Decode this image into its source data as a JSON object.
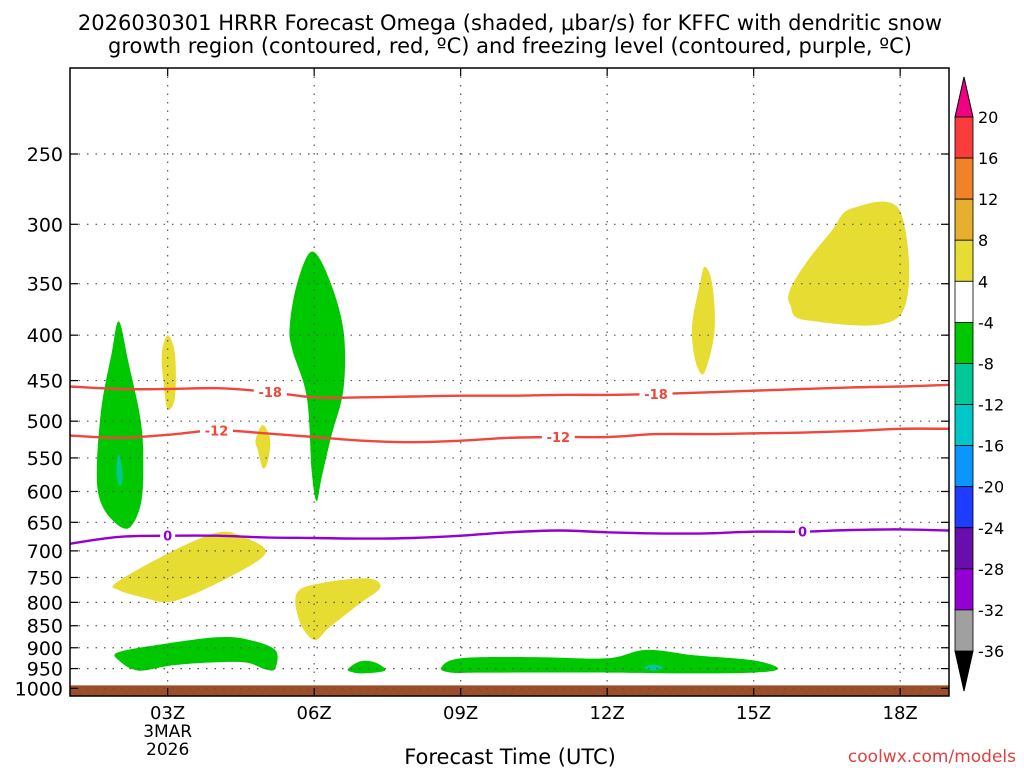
{
  "chart_data": {
    "type": "heatmap",
    "title_line1": "2026030301 HRRR Forecast Omega (shaded, μbar/s) for KFFC with dendritic snow",
    "title_line2": "growth region (contoured, red, ºC) and freezing level (contoured, purple, ºC)",
    "xlabel": "Forecast Time (UTC)",
    "watermark": "coolwx.com/models",
    "x_axis": {
      "min_hour": 1,
      "max_hour": 19,
      "ticks": [
        {
          "hour": 3,
          "label": "03Z",
          "sub1": "3MAR",
          "sub2": "2026"
        },
        {
          "hour": 6,
          "label": "06Z",
          "sub1": "",
          "sub2": ""
        },
        {
          "hour": 9,
          "label": "09Z",
          "sub1": "",
          "sub2": ""
        },
        {
          "hour": 12,
          "label": "12Z",
          "sub1": "",
          "sub2": ""
        },
        {
          "hour": 15,
          "label": "15Z",
          "sub1": "",
          "sub2": ""
        },
        {
          "hour": 18,
          "label": "18Z",
          "sub1": "",
          "sub2": ""
        }
      ]
    },
    "y_axis": {
      "scale": "log-pressure",
      "top_hpa": 200,
      "bottom_hpa": 1020,
      "ticks": [
        250,
        300,
        350,
        400,
        450,
        500,
        550,
        600,
        650,
        700,
        750,
        800,
        850,
        900,
        950,
        1000
      ]
    },
    "ground_color": "#9c4e2a",
    "colorbar": {
      "colors": [
        "#000000",
        "#a0a0a0",
        "#9400d3",
        "#6a0dad",
        "#1e3cff",
        "#0a96ff",
        "#00c8c8",
        "#00c896",
        "#00c800",
        "#ffffff",
        "#e6dc32",
        "#e6af2d",
        "#f08228",
        "#fa3c3c",
        "#f00082"
      ],
      "labels": [
        "-36",
        "-32",
        "-28",
        "-24",
        "-20",
        "-16",
        "-12",
        "-8",
        "-4",
        "4",
        "8",
        "12",
        "16",
        "20"
      ]
    },
    "contours": [
      {
        "name": "-18",
        "color": "#f0463c",
        "label_hours": [
          5.1,
          13.0
        ],
        "points": [
          [
            1,
            457
          ],
          [
            2,
            460
          ],
          [
            3,
            460
          ],
          [
            4,
            459
          ],
          [
            5,
            463
          ],
          [
            6,
            470
          ],
          [
            7,
            470
          ],
          [
            8,
            469
          ],
          [
            9,
            468
          ],
          [
            10,
            468
          ],
          [
            11,
            467
          ],
          [
            12,
            467
          ],
          [
            13,
            466
          ],
          [
            14,
            464
          ],
          [
            15,
            462
          ],
          [
            16,
            460
          ],
          [
            17,
            458
          ],
          [
            18,
            457
          ],
          [
            19,
            455
          ]
        ]
      },
      {
        "name": "-12",
        "color": "#f0463c",
        "label_hours": [
          4.0,
          11.0
        ],
        "points": [
          [
            1,
            519
          ],
          [
            2,
            522
          ],
          [
            3,
            518
          ],
          [
            4,
            512
          ],
          [
            5,
            516
          ],
          [
            6,
            521
          ],
          [
            7,
            526
          ],
          [
            8,
            528
          ],
          [
            9,
            526
          ],
          [
            10,
            522
          ],
          [
            11,
            521
          ],
          [
            12,
            521
          ],
          [
            13,
            517
          ],
          [
            14,
            517
          ],
          [
            15,
            516
          ],
          [
            16,
            515
          ],
          [
            17,
            513
          ],
          [
            18,
            510
          ],
          [
            19,
            510
          ]
        ]
      },
      {
        "name": "0",
        "color": "#9400d3",
        "label_hours": [
          3.0,
          16.0
        ],
        "points": [
          [
            1,
            687
          ],
          [
            2,
            675
          ],
          [
            3,
            673
          ],
          [
            4,
            673
          ],
          [
            5,
            676
          ],
          [
            6,
            677
          ],
          [
            7,
            678
          ],
          [
            8,
            677
          ],
          [
            9,
            673
          ],
          [
            10,
            667
          ],
          [
            11,
            664
          ],
          [
            12,
            667
          ],
          [
            13,
            669
          ],
          [
            14,
            669
          ],
          [
            15,
            666
          ],
          [
            16,
            666
          ],
          [
            17,
            663
          ],
          [
            18,
            662
          ],
          [
            19,
            664
          ]
        ]
      }
    ],
    "shading": [
      {
        "category": "-8 to -4",
        "color": "#00c800",
        "points": [
          [
            1.55,
            560
          ],
          [
            1.65,
            480
          ],
          [
            1.85,
            420
          ],
          [
            2.0,
            386
          ],
          [
            2.2,
            430
          ],
          [
            2.45,
            500
          ],
          [
            2.5,
            560
          ],
          [
            2.45,
            620
          ],
          [
            2.2,
            660
          ],
          [
            1.85,
            645
          ],
          [
            1.6,
            610
          ]
        ]
      },
      {
        "category": "-12 to -8",
        "color": "#00c896",
        "points": [
          [
            1.95,
            570
          ],
          [
            2.0,
            545
          ],
          [
            2.08,
            575
          ],
          [
            2.02,
            592
          ]
        ]
      },
      {
        "category": "-8 to -4",
        "color": "#00c800",
        "points": [
          [
            5.5,
            390
          ],
          [
            5.65,
            350
          ],
          [
            5.95,
            322
          ],
          [
            6.3,
            345
          ],
          [
            6.6,
            395
          ],
          [
            6.6,
            460
          ],
          [
            6.35,
            520
          ],
          [
            6.15,
            580
          ],
          [
            6.05,
            615
          ],
          [
            5.95,
            570
          ],
          [
            5.85,
            470
          ],
          [
            5.55,
            415
          ]
        ]
      },
      {
        "category": "-8 to -4",
        "color": "#00c800",
        "points": [
          [
            2.0,
            910
          ],
          [
            3.0,
            890
          ],
          [
            4.0,
            876
          ],
          [
            4.6,
            880
          ],
          [
            5.2,
            905
          ],
          [
            5.2,
            950
          ],
          [
            5.0,
            952
          ],
          [
            4.6,
            935
          ],
          [
            3.9,
            935
          ],
          [
            3.1,
            942
          ],
          [
            2.4,
            955
          ],
          [
            2.0,
            930
          ]
        ]
      },
      {
        "category": "-8 to -4",
        "color": "#00c800",
        "points": [
          [
            6.7,
            950
          ],
          [
            6.95,
            932
          ],
          [
            7.25,
            935
          ],
          [
            7.45,
            955
          ],
          [
            7.0,
            962
          ],
          [
            6.75,
            958
          ]
        ]
      },
      {
        "category": "-8 to -4",
        "color": "#00c800",
        "points": [
          [
            8.6,
            948
          ],
          [
            9.0,
            925
          ],
          [
            10.5,
            922
          ],
          [
            12.0,
            925
          ],
          [
            12.8,
            905
          ],
          [
            13.8,
            918
          ],
          [
            15.0,
            930
          ],
          [
            15.5,
            950
          ],
          [
            15.0,
            960
          ],
          [
            13.5,
            962
          ],
          [
            12.0,
            960
          ],
          [
            9.5,
            960
          ],
          [
            8.8,
            960
          ]
        ]
      },
      {
        "category": "-12 to -8",
        "color": "#00c896",
        "points": [
          [
            12.75,
            948
          ],
          [
            12.95,
            940
          ],
          [
            13.15,
            948
          ],
          [
            12.95,
            955
          ]
        ]
      },
      {
        "category": "4 to 8",
        "color": "#e6dc32",
        "points": [
          [
            1.95,
            760
          ],
          [
            3.0,
            705
          ],
          [
            4.0,
            668
          ],
          [
            4.55,
            675
          ],
          [
            5.0,
            705
          ],
          [
            4.1,
            757
          ],
          [
            3.1,
            798
          ],
          [
            2.5,
            790
          ],
          [
            2.0,
            775
          ]
        ]
      },
      {
        "category": "4 to 8",
        "color": "#e6dc32",
        "points": [
          [
            5.65,
            780
          ],
          [
            6.2,
            760
          ],
          [
            7.1,
            752
          ],
          [
            7.35,
            770
          ],
          [
            6.9,
            805
          ],
          [
            6.3,
            855
          ],
          [
            6.0,
            882
          ],
          [
            5.7,
            840
          ]
        ]
      },
      {
        "category": "4 to 8",
        "color": "#e6dc32",
        "points": [
          [
            2.88,
            420
          ],
          [
            3.0,
            400
          ],
          [
            3.15,
            420
          ],
          [
            3.15,
            470
          ],
          [
            3.0,
            485
          ],
          [
            2.92,
            455
          ]
        ]
      },
      {
        "category": "4 to 8",
        "color": "#e6dc32",
        "points": [
          [
            4.8,
            525
          ],
          [
            4.95,
            505
          ],
          [
            5.1,
            525
          ],
          [
            5.05,
            555
          ],
          [
            4.95,
            565
          ],
          [
            4.85,
            540
          ]
        ]
      },
      {
        "category": "4 to 8",
        "color": "#e6dc32",
        "points": [
          [
            13.75,
            385
          ],
          [
            13.9,
            350
          ],
          [
            14.0,
            335
          ],
          [
            14.15,
            350
          ],
          [
            14.2,
            395
          ],
          [
            14.0,
            440
          ],
          [
            13.85,
            435
          ],
          [
            13.75,
            410
          ]
        ]
      },
      {
        "category": "4 to 8",
        "color": "#e6dc32",
        "points": [
          [
            15.75,
            355
          ],
          [
            16.1,
            330
          ],
          [
            16.6,
            305
          ],
          [
            17.0,
            288
          ],
          [
            18.0,
            290
          ],
          [
            18.0,
            380
          ],
          [
            16.1,
            385
          ],
          [
            15.75,
            370
          ]
        ]
      }
    ]
  }
}
